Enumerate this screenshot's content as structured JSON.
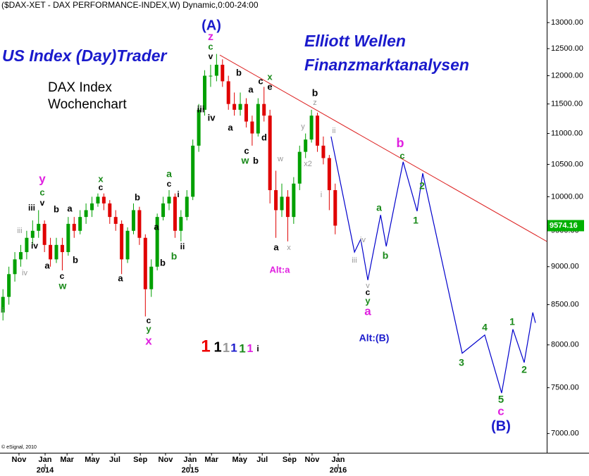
{
  "chart_data": {
    "type": "candlestick",
    "title": "($DAX-XET - DAX PERFORMANCE-INDEX,W) Dynamic,0:00-24:00",
    "headline": "US Index (Day)Trader",
    "tagline": [
      "Elliott Wellen",
      "Finanzmarktanalysen"
    ],
    "label_lines": [
      "DAX Index",
      "Wochenchart"
    ],
    "copyright": "© eSignal, 2010",
    "log_scale": true,
    "up_color": "#00a000",
    "down_color": "#e00000",
    "x": [
      1,
      3,
      5,
      7,
      9,
      11,
      13,
      15,
      17,
      19,
      21,
      23,
      25,
      27,
      29,
      31,
      33,
      35,
      37,
      39,
      41,
      43,
      45,
      47,
      49,
      51,
      53,
      55,
      57,
      59,
      61,
      63,
      65,
      67,
      69,
      71,
      73,
      75,
      77,
      79,
      81,
      83,
      85,
      87,
      89,
      91,
      93,
      95,
      97,
      99,
      101,
      103,
      105,
      107,
      109,
      111,
      113
    ],
    "open": [
      8400,
      8600,
      8900,
      9100,
      9200,
      9400,
      9500,
      9600,
      9300,
      9100,
      9300,
      9200,
      9600,
      9500,
      9700,
      9800,
      9900,
      10000,
      9900,
      9700,
      9600,
      9100,
      9500,
      9800,
      9400,
      8700,
      9000,
      9700,
      9900,
      10000,
      9500,
      9700,
      10000,
      10800,
      11400,
      12000,
      12000,
      12200,
      11900,
      11500,
      11400,
      11500,
      11200,
      11000,
      11500,
      11300,
      10100,
      9800,
      10000,
      9700,
      10200,
      10700,
      10900,
      11300,
      10800,
      10600,
      10100
    ],
    "high": [
      8700,
      9000,
      9200,
      9300,
      9500,
      9650,
      9800,
      9650,
      9400,
      9400,
      9400,
      9700,
      9700,
      9800,
      9900,
      10000,
      10050,
      10050,
      9950,
      9800,
      9650,
      9550,
      9900,
      9850,
      9450,
      9100,
      9750,
      10000,
      10100,
      10050,
      9800,
      10100,
      10900,
      11500,
      12100,
      12200,
      12400,
      12300,
      12000,
      11700,
      11700,
      11600,
      11300,
      11600,
      11800,
      11400,
      10400,
      10200,
      10100,
      10300,
      10800,
      11000,
      11400,
      11350,
      10950,
      10650,
      10200
    ],
    "low": [
      8300,
      8500,
      8800,
      9000,
      9100,
      9300,
      9400,
      9200,
      9000,
      9050,
      8950,
      9150,
      9400,
      9450,
      9600,
      9700,
      9850,
      9800,
      9600,
      9500,
      8900,
      9050,
      9450,
      9300,
      8350,
      8600,
      8950,
      9650,
      9800,
      9400,
      9350,
      9650,
      9950,
      10700,
      11300,
      11800,
      11900,
      11800,
      11400,
      11300,
      11300,
      11100,
      10800,
      10950,
      11200,
      9900,
      9400,
      9700,
      9350,
      9600,
      10100,
      10600,
      10850,
      10700,
      10500,
      9800,
      9450
    ],
    "close": [
      8600,
      8900,
      9100,
      9200,
      9400,
      9500,
      9600,
      9300,
      9100,
      9300,
      9200,
      9600,
      9500,
      9700,
      9800,
      9900,
      10000,
      9900,
      9700,
      9600,
      9100,
      9500,
      9800,
      9400,
      8700,
      9000,
      9700,
      9900,
      10000,
      9500,
      9700,
      10000,
      10800,
      11400,
      12000,
      12000,
      12200,
      11900,
      11500,
      11400,
      11500,
      11200,
      11000,
      11500,
      11300,
      10100,
      9800,
      10000,
      9700,
      10200,
      10700,
      10900,
      11300,
      10800,
      10600,
      10100,
      9574.16
    ],
    "projection": {
      "color": "#0000cc",
      "x": [
        111.6,
        119.5,
        121.6,
        124,
        128.3,
        130.2,
        135.9,
        140.6,
        142.5,
        155.8,
        163.4,
        169.1,
        172.9,
        176.7,
        179.6,
        180.5
      ],
      "y": [
        10950,
        9200,
        9380,
        8820,
        9730,
        9280,
        10540,
        9785,
        10360,
        7900,
        8120,
        7440,
        8190,
        7790,
        8400,
        8270
      ]
    },
    "trendline": {
      "color": "#dd2222",
      "x": [
        74.1,
        184.3
      ],
      "y": [
        12380,
        9350
      ]
    },
    "xlim": [
      0,
      184.3
    ],
    "ylim": [
      6800,
      13450
    ],
    "xticks": [
      {
        "value": 6.4,
        "label": "Nov"
      },
      {
        "value": 15.2,
        "label": "Jan"
      },
      {
        "value": 22.6,
        "label": "Mar"
      },
      {
        "value": 31.1,
        "label": "May"
      },
      {
        "value": 38.7,
        "label": "Jul"
      },
      {
        "value": 47.3,
        "label": "Sep"
      },
      {
        "value": 55.8,
        "label": "Nov"
      },
      {
        "value": 64.1,
        "label": "Jan"
      },
      {
        "value": 71.3,
        "label": "Mar"
      },
      {
        "value": 80.8,
        "label": "May"
      },
      {
        "value": 88.4,
        "label": "Jul"
      },
      {
        "value": 97.6,
        "label": "Sep"
      },
      {
        "value": 105.2,
        "label": "Nov"
      },
      {
        "value": 114,
        "label": "Jan"
      }
    ],
    "year_ticks": [
      {
        "value": 15.2,
        "label": "2014"
      },
      {
        "value": 64.1,
        "label": "2015"
      },
      {
        "value": 114,
        "label": "2016"
      }
    ],
    "yticks": [
      {
        "value": 7000,
        "label": "7000.00"
      },
      {
        "value": 7500,
        "label": "7500.00"
      },
      {
        "value": 8000,
        "label": "8000.00"
      },
      {
        "value": 8500,
        "label": "8500.00"
      },
      {
        "value": 9000,
        "label": "9000.00"
      },
      {
        "value": 9500,
        "label": "9500.00"
      },
      {
        "value": 10000,
        "label": "10000.00"
      },
      {
        "value": 10500,
        "label": "10500.00"
      },
      {
        "value": 11000,
        "label": "11000.00"
      },
      {
        "value": 11500,
        "label": "11500.00"
      },
      {
        "value": 12000,
        "label": "12000.00"
      },
      {
        "value": 12500,
        "label": "12500.00"
      },
      {
        "value": 13000,
        "label": "13000.00"
      }
    ],
    "last_price_color": "#00b000",
    "annotations": [
      {
        "text": "(A)",
        "color": "#1a1acc"
      },
      {
        "text": "z",
        "color": "#e020e0"
      },
      {
        "text": "c",
        "color": "#1a8a1a"
      },
      {
        "text": "v",
        "color": "#000"
      },
      {
        "text": "iii",
        "color": "#000"
      },
      {
        "text": "iv",
        "color": "#000"
      },
      {
        "text": "b",
        "color": "#000"
      },
      {
        "text": "a",
        "color": "#000"
      },
      {
        "text": "c",
        "color": "#000"
      },
      {
        "text": "a",
        "color": "#000"
      },
      {
        "text": "x",
        "color": "#1a8a1a"
      },
      {
        "text": "e",
        "color": "#000"
      },
      {
        "text": "c",
        "color": "#000"
      },
      {
        "text": "w",
        "color": "#1a8a1a"
      },
      {
        "text": "b",
        "color": "#000"
      },
      {
        "text": "d",
        "color": "#000"
      },
      {
        "text": "b",
        "color": "#000"
      },
      {
        "text": "z",
        "color": "#999"
      },
      {
        "text": "y",
        "color": "#999"
      },
      {
        "text": "x2",
        "color": "#999"
      },
      {
        "text": "w",
        "color": "#999"
      },
      {
        "text": "ii",
        "color": "#999"
      },
      {
        "text": "i",
        "color": "#999"
      },
      {
        "text": "a",
        "color": "#000"
      },
      {
        "text": "x",
        "color": "#999"
      },
      {
        "text": "Alt:a",
        "color": "#e020e0"
      },
      {
        "text": "iii",
        "color": "#999"
      },
      {
        "text": "iv",
        "color": "#999"
      },
      {
        "text": "v",
        "color": "#999"
      },
      {
        "text": "c",
        "color": "#000"
      },
      {
        "text": "y",
        "color": "#1a8a1a"
      },
      {
        "text": "a",
        "color": "#e020e0"
      },
      {
        "text": "b",
        "color": "#e020e0"
      },
      {
        "text": "c",
        "color": "#1a8a1a"
      },
      {
        "text": "a",
        "color": "#1a8a1a"
      },
      {
        "text": "b",
        "color": "#1a8a1a"
      },
      {
        "text": "2",
        "color": "#1a8a1a"
      },
      {
        "text": "1",
        "color": "#1a8a1a"
      },
      {
        "text": "Alt:(B)",
        "color": "#1a1acc"
      },
      {
        "text": "3",
        "color": "#1a8a1a"
      },
      {
        "text": "4",
        "color": "#1a8a1a"
      },
      {
        "text": "5",
        "color": "#1a8a1a"
      },
      {
        "text": "c",
        "color": "#e020e0"
      },
      {
        "text": "(B)",
        "color": "#1a1acc"
      },
      {
        "text": "1",
        "color": "#1a8a1a"
      },
      {
        "text": "2",
        "color": "#1a8a1a"
      },
      {
        "text": "y",
        "color": "#e020e0"
      },
      {
        "text": "c",
        "color": "#1a8a1a"
      },
      {
        "text": "v",
        "color": "#000"
      },
      {
        "text": "iii",
        "color": "#000"
      },
      {
        "text": "iv",
        "color": "#000"
      },
      {
        "text": "iv",
        "color": "#999"
      },
      {
        "text": "iii",
        "color": "#999"
      },
      {
        "text": "ii",
        "color": "#999"
      },
      {
        "text": "a",
        "color": "#000"
      },
      {
        "text": "c",
        "color": "#000"
      },
      {
        "text": "w",
        "color": "#1a8a1a"
      },
      {
        "text": "b",
        "color": "#000"
      },
      {
        "text": "a",
        "color": "#000"
      },
      {
        "text": "b",
        "color": "#000"
      },
      {
        "text": "x",
        "color": "#1a8a1a"
      },
      {
        "text": "c",
        "color": "#000"
      },
      {
        "text": "b",
        "color": "#000"
      },
      {
        "text": "a",
        "color": "#000"
      },
      {
        "text": "a",
        "color": "#1a8a1a"
      },
      {
        "text": "c",
        "color": "#000"
      },
      {
        "text": "i",
        "color": "#000"
      },
      {
        "text": "ii",
        "color": "#000"
      },
      {
        "text": "a",
        "color": "#000"
      },
      {
        "text": "b",
        "color": "#000"
      },
      {
        "text": "b",
        "color": "#1a8a1a"
      },
      {
        "text": "c",
        "color": "#000"
      },
      {
        "text": "y",
        "color": "#1a8a1a"
      },
      {
        "text": "x",
        "color": "#e020e0"
      },
      {
        "text": "1",
        "color": "#ee0000"
      },
      {
        "text": "1",
        "color": "#000"
      },
      {
        "text": "1",
        "color": "#999"
      },
      {
        "text": "1",
        "color": "#1a1acc"
      },
      {
        "text": "1",
        "color": "#1a8a1a"
      },
      {
        "text": "1",
        "color": "#e020e0"
      },
      {
        "text": "i",
        "color": "#000"
      }
    ]
  }
}
